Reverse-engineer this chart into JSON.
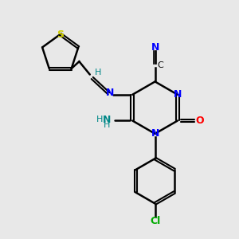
{
  "background_color": "#e8e8e8",
  "bond_color": "#000000",
  "atom_colors": {
    "N": "#0000ff",
    "O": "#ff0000",
    "S": "#cccc00",
    "Cl": "#00aa00",
    "C": "#000000",
    "H": "#008888"
  },
  "figsize": [
    3.0,
    3.0
  ],
  "dpi": 100
}
